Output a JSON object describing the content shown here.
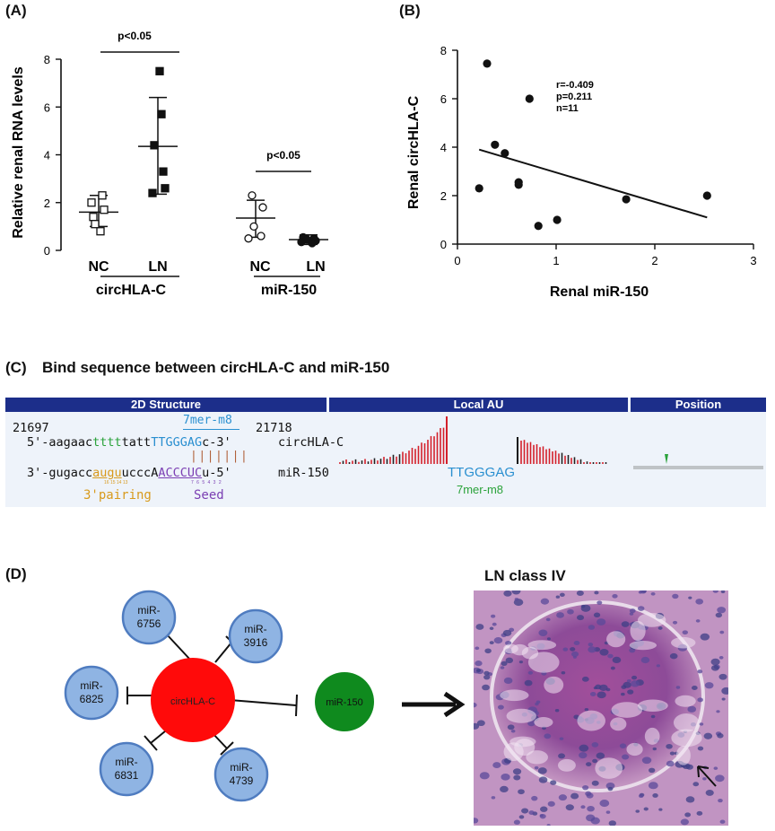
{
  "panelA": {
    "label": "(A)",
    "ylabel": "Relative renal RNA levels",
    "yticks": [
      "0",
      "2",
      "4",
      "6",
      "8"
    ],
    "groups": [
      {
        "name": "circHLA-C",
        "sub": [
          "NC",
          "LN"
        ],
        "pvalue": "p<0.05"
      },
      {
        "name": "miR-150",
        "sub": [
          "NC",
          "LN"
        ],
        "pvalue": "p<0.05"
      }
    ]
  },
  "panelB": {
    "label": "(B)",
    "ylabel": "Renal  circHLA-C",
    "xlabel": "Renal miR-150",
    "xticks": [
      "0",
      "1",
      "2",
      "3"
    ],
    "yticks": [
      "0",
      "2",
      "4",
      "6",
      "8"
    ],
    "stats": [
      "r=-0.409",
      "p=0.211",
      "n=11"
    ]
  },
  "chart_data": [
    {
      "type": "scatter",
      "panel": "A",
      "ylabel": "Relative renal RNA levels",
      "ylim": [
        0,
        8
      ],
      "categories": [
        "circHLA-C NC",
        "circHLA-C LN",
        "miR-150 NC",
        "miR-150 LN"
      ],
      "series": [
        {
          "values": [
            [
              2.3,
              2.0,
              1.7,
              1.4,
              0.8,
              1.1
            ],
            [
              7.5,
              5.7,
              4.4,
              3.3,
              2.6,
              2.4
            ],
            [
              2.3,
              1.8,
              1.0,
              0.6,
              0.5
            ],
            [
              0.55,
              0.5,
              0.45,
              0.4,
              0.35,
              0.3
            ]
          ]
        }
      ],
      "summary": [
        {
          "mean": 1.6,
          "sd_low": 1.0,
          "sd_high": 2.3
        },
        {
          "mean": 4.35,
          "sd_low": 2.35,
          "sd_high": 6.4
        },
        {
          "mean": 1.35,
          "sd_low": 0.55,
          "sd_high": 2.1
        },
        {
          "mean": 0.45,
          "sd_low": 0.25,
          "sd_high": 0.65
        }
      ],
      "annotations": [
        "p<0.05",
        "p<0.05"
      ]
    },
    {
      "type": "scatter",
      "panel": "B",
      "xlabel": "Renal miR-150",
      "ylabel": "Renal  circHLA-C",
      "xlim": [
        0,
        3
      ],
      "ylim": [
        0,
        8
      ],
      "points": [
        [
          0.22,
          2.3
        ],
        [
          0.3,
          7.45
        ],
        [
          0.38,
          4.1
        ],
        [
          0.48,
          3.75
        ],
        [
          0.62,
          2.55
        ],
        [
          0.62,
          2.45
        ],
        [
          0.73,
          6.0
        ],
        [
          0.82,
          0.75
        ],
        [
          1.01,
          1.0
        ],
        [
          1.71,
          1.85
        ],
        [
          2.53,
          2.0
        ]
      ],
      "trendline": [
        [
          0.22,
          3.9
        ],
        [
          2.53,
          1.1
        ]
      ],
      "annotations": [
        "r=-0.409",
        "p=0.211",
        "n=11"
      ]
    }
  ],
  "panelC": {
    "label": "(C)",
    "title": "Bind sequence between circHLA-C and miR-150",
    "headers": [
      "2D Structure",
      "Local AU",
      "Position"
    ],
    "pos_start": "21697",
    "pos_end": "21718",
    "site_type": "7mer-m8",
    "top_prefix": "5'-aagaac",
    "top_green": "tttt",
    "top_mid": "tatt",
    "top_blue": "TTGGGAG",
    "top_suffix": "c-3'",
    "top_name": "circHLA-C",
    "bars": "|||||||",
    "bot_prefix": "3'-gugacc",
    "bot_orange": "augu",
    "bot_mid": "uccc",
    "bot_first": "A",
    "bot_purple": "ACCCUC",
    "bot_suffix": "u-5'",
    "bot_name": "miR-150",
    "pairing_nums": "16 15 14 13",
    "seed_nums": "7 6 5 4 3 2",
    "pairing_label": "3'pairing",
    "seed_label": "Seed",
    "au_seq": "TTGGGAG",
    "au_type": "7mer-m8"
  },
  "panelD": {
    "label": "(D)",
    "center": "circHLA-C",
    "target": "miR-150",
    "mirs": [
      {
        "l1": "miR-",
        "l2": "6756"
      },
      {
        "l1": "miR-",
        "l2": "3916"
      },
      {
        "l1": "miR-",
        "l2": "6825"
      },
      {
        "l1": "miR-",
        "l2": "6831"
      },
      {
        "l1": "miR-",
        "l2": "4739"
      }
    ],
    "histo_title": "LN class IV"
  },
  "colors": {
    "header_blue": "#1c2e8a",
    "circ_red": "#ff0a0a",
    "mir_blue": "#8fb4e3",
    "mir150_green": "#0f8a1e",
    "seed_purple": "#7b3fb3",
    "pairing_orange": "#d89a1c",
    "au_red": "#d4202a"
  }
}
